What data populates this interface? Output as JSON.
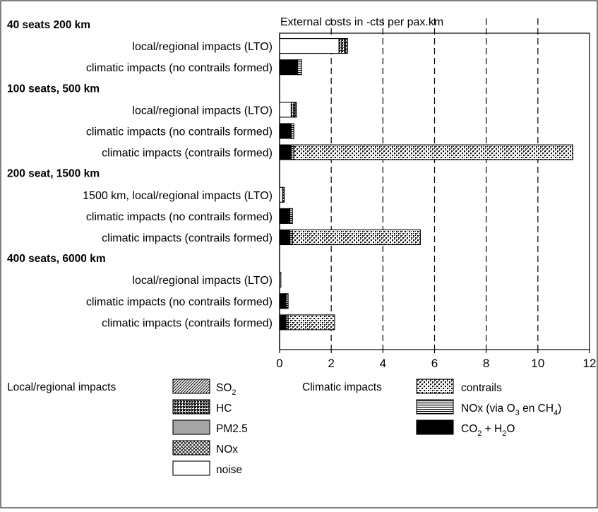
{
  "chart_data": {
    "type": "bar",
    "orientation": "horizontal",
    "stacked": true,
    "title": "External costs in  -cts per pax.km",
    "xlim": [
      0,
      12
    ],
    "x_ticks": [
      "0",
      "2",
      "4",
      "6",
      "8",
      "10",
      "12"
    ],
    "grid": "vertical dashed at 4, 6, 8, 10",
    "groups": [
      {
        "label": "40 seats 200 km",
        "bars": [
          {
            "label": "local/regional impacts (LTO)",
            "segments": [
              {
                "component": "noise",
                "value": 2.3
              },
              {
                "component": "HC",
                "value": 0.25
              },
              {
                "component": "NOx",
                "value": 0.08
              }
            ]
          },
          {
            "label": "climatic impacts (no contrails formed)",
            "segments": [
              {
                "component": "CO2 + H2O",
                "value": 0.7
              },
              {
                "component": "NOx (via O3 en CH4)",
                "value": 0.15
              }
            ]
          }
        ]
      },
      {
        "label": "100 seats, 500 km",
        "bars": [
          {
            "label": "local/regional impacts (LTO)",
            "segments": [
              {
                "component": "noise",
                "value": 0.45
              },
              {
                "component": "HC",
                "value": 0.15
              },
              {
                "component": "NOx",
                "value": 0.05
              }
            ]
          },
          {
            "label": "climatic impacts (no contrails formed)",
            "segments": [
              {
                "component": "CO2 + H2O",
                "value": 0.45
              },
              {
                "component": "NOx (via O3 en CH4)",
                "value": 0.1
              }
            ]
          },
          {
            "label": "climatic impacts (contrails formed)",
            "segments": [
              {
                "component": "CO2 + H2O",
                "value": 0.45
              },
              {
                "component": "NOx (via O3 en CH4)",
                "value": 0.1
              },
              {
                "component": "contrails",
                "value": 10.8
              }
            ]
          }
        ]
      },
      {
        "label": "200 seat, 1500 km",
        "bars": [
          {
            "label": "1500 km, local/regional impacts (LTO)",
            "segments": [
              {
                "component": "noise",
                "value": 0.12
              },
              {
                "component": "HC",
                "value": 0.06
              }
            ]
          },
          {
            "label": "climatic impacts (no contrails formed)",
            "segments": [
              {
                "component": "CO2 + H2O",
                "value": 0.4
              },
              {
                "component": "NOx (via O3 en CH4)",
                "value": 0.1
              }
            ]
          },
          {
            "label": "climatic impacts (contrails formed)",
            "segments": [
              {
                "component": "CO2 + H2O",
                "value": 0.4
              },
              {
                "component": "NOx (via O3 en CH4)",
                "value": 0.1
              },
              {
                "component": "contrails",
                "value": 4.95
              }
            ]
          }
        ]
      },
      {
        "label": "400 seats, 6000 km",
        "bars": [
          {
            "label": "local/regional impacts (LTO)",
            "segments": [
              {
                "component": "noise",
                "value": 0.05
              }
            ]
          },
          {
            "label": "climatic impacts (no contrails formed)",
            "segments": [
              {
                "component": "CO2 + H2O",
                "value": 0.25
              },
              {
                "component": "NOx (via O3 en CH4)",
                "value": 0.08
              }
            ]
          },
          {
            "label": "climatic impacts (contrails formed)",
            "segments": [
              {
                "component": "CO2 + H2O",
                "value": 0.25
              },
              {
                "component": "NOx (via O3 en CH4)",
                "value": 0.08
              },
              {
                "component": "contrails",
                "value": 1.8
              }
            ]
          }
        ]
      }
    ],
    "legend": {
      "local_title": "Local/regional impacts",
      "local_items": [
        {
          "key": "SO2",
          "label": "SO",
          "sub": "2",
          "pattern": "diagonal"
        },
        {
          "key": "HC",
          "label": "HC",
          "pattern": "grid"
        },
        {
          "key": "PM2.5",
          "label": "PM2.5",
          "pattern": "gray"
        },
        {
          "key": "NOx",
          "label": "NOx",
          "pattern": "crosshatch"
        },
        {
          "key": "noise",
          "label": "noise",
          "pattern": "white"
        }
      ],
      "climatic_title": "Climatic impacts",
      "climatic_items": [
        {
          "key": "contrails",
          "label": "contrails",
          "pattern": "checker"
        },
        {
          "key": "NOx (via O3 en CH4)",
          "label": "NOx (via O",
          "sub": "3",
          "mid": " en CH",
          "sub2": "4",
          "end": ")",
          "pattern": "hlines"
        },
        {
          "key": "CO2 + H2O",
          "label": "CO",
          "sub": "2",
          "mid": " + H",
          "sub2": "2",
          "end": "O",
          "pattern": "black"
        }
      ]
    },
    "colors": {
      "CO2 + H2O": "#000000",
      "PM2.5": "#a6a6a6",
      "noise": "#ffffff"
    }
  }
}
